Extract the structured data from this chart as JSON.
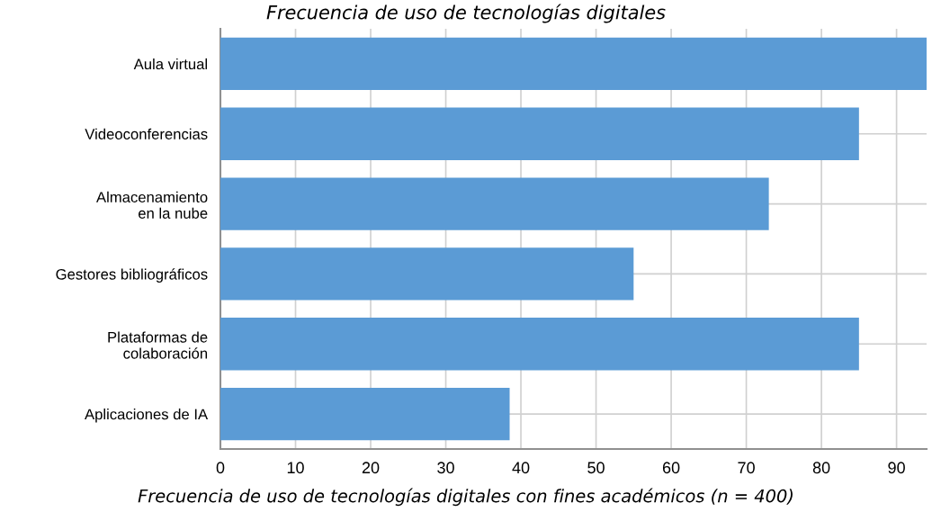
{
  "chart_data": {
    "type": "bar",
    "orientation": "horizontal",
    "title": "Frecuencia de uso de tecnologías digitales",
    "categories": [
      "Aula virtual",
      "Videoconferencias",
      "Almacenamiento\nen la nube",
      "Gestores bibliográficos",
      "Plataformas de\ncolaboración",
      "Aplicaciones de IA"
    ],
    "values": [
      94,
      85,
      73,
      55,
      85,
      38.5
    ],
    "color": "#5b9bd5",
    "xlim": [
      0,
      94
    ],
    "xticks": [
      0,
      10,
      20,
      30,
      40,
      50,
      60,
      70,
      80,
      90
    ],
    "grid": true,
    "annotations": [
      "Frecuencia de uso de tecnologías digitales con fines académicos (n = 400)"
    ]
  }
}
